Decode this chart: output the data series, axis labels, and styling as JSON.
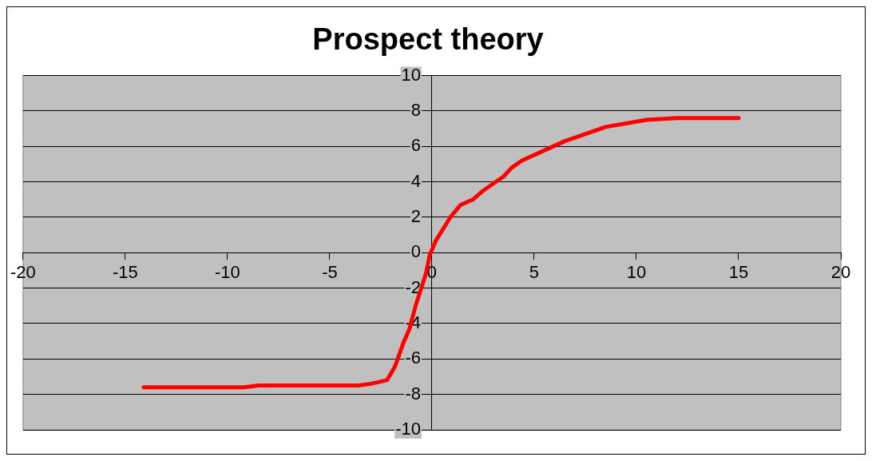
{
  "chart_data": {
    "type": "line",
    "title": "Prospect theory",
    "x": [
      -14.1,
      -9.2,
      -8.5,
      -3.6,
      -3.0,
      -2.2,
      -1.8,
      -1.4,
      -1.1,
      -0.8,
      -0.3,
      -0.1,
      0.2,
      0.9,
      1.4,
      2.0,
      2.5,
      3.5,
      3.9,
      4.4,
      6.5,
      8.5,
      10.5,
      12,
      15
    ],
    "series": [
      {
        "color": "#ff0000",
        "values": [
          -7.6,
          -7.6,
          -7.5,
          -7.5,
          -7.4,
          -7.2,
          -6.4,
          -5.1,
          -4.3,
          -3.0,
          -1.2,
          -0.1,
          0.7,
          2.0,
          2.7,
          3.0,
          3.5,
          4.3,
          4.8,
          5.2,
          6.3,
          7.1,
          7.5,
          7.6,
          7.6
        ]
      }
    ],
    "xlim": [
      -20,
      20
    ],
    "xticks": [
      -20,
      -15,
      -10,
      -5,
      0,
      5,
      10,
      15,
      20
    ],
    "ylim": [
      -10,
      10
    ],
    "yticks": [
      -10,
      -8,
      -6,
      -4,
      -2,
      0,
      2,
      4,
      6,
      8,
      10
    ],
    "grid": "y",
    "legend": false,
    "marker": "none",
    "line_style": "solid"
  }
}
